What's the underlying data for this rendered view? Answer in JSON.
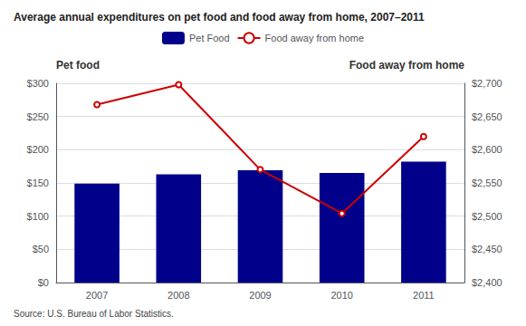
{
  "chart_data": {
    "type": "bar",
    "title": "Average annual expenditures on pet food and food away from home, 2007–2011",
    "ylabel": "Pet food",
    "y2label": "Food away from home",
    "annotations": [
      "Source: U.S. Bureau of Labor Statistics."
    ],
    "categories": [
      "2007",
      "2008",
      "2009",
      "2010",
      "2011"
    ],
    "series": [
      {
        "name": "Pet Food",
        "type": "bar",
        "color": "#00008B",
        "values": [
          149,
          163,
          169,
          165,
          182
        ]
      },
      {
        "name": "Food away from home",
        "type": "line",
        "color": "#CC0000",
        "axis": "y2",
        "values": [
          2668,
          2698,
          2570,
          2504,
          2620
        ]
      }
    ],
    "ylim": [
      0,
      300
    ],
    "yticks": [
      {
        "value": 0,
        "label": "$0"
      },
      {
        "value": 50,
        "label": "$50"
      },
      {
        "value": 100,
        "label": "$100"
      },
      {
        "value": 150,
        "label": "$150"
      },
      {
        "value": 200,
        "label": "$200"
      },
      {
        "value": 250,
        "label": "$250"
      },
      {
        "value": 300,
        "label": "$300"
      }
    ],
    "y2lim": [
      2400,
      2700
    ],
    "y2ticks": [
      {
        "value": 2400,
        "label": "$2,400"
      },
      {
        "value": 2450,
        "label": "$2,450"
      },
      {
        "value": 2500,
        "label": "$2,500"
      },
      {
        "value": 2550,
        "label": "$2,550"
      },
      {
        "value": 2600,
        "label": "$2,600"
      },
      {
        "value": 2650,
        "label": "$2,650"
      },
      {
        "value": 2700,
        "label": "$2,700"
      }
    ],
    "grid": true,
    "legend": "top"
  }
}
